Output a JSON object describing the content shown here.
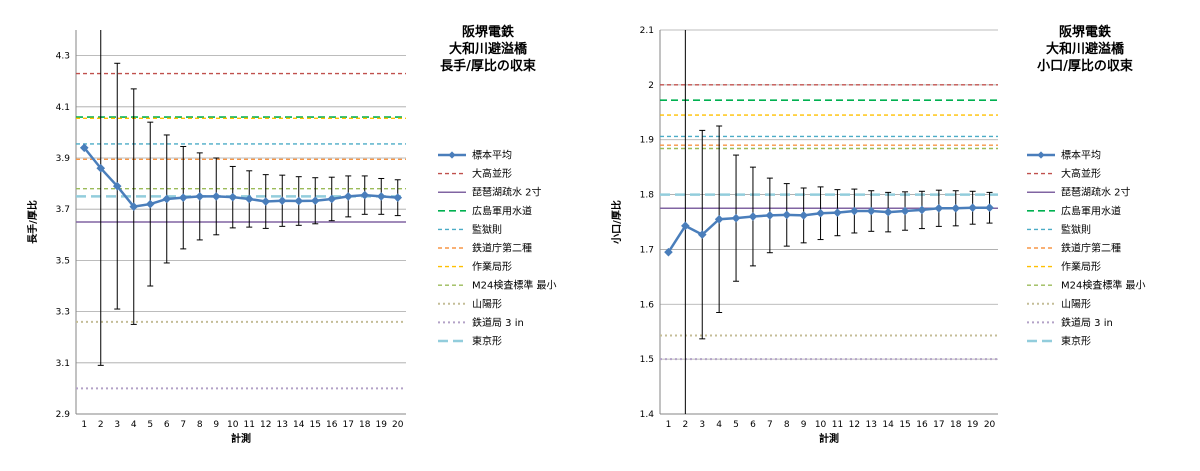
{
  "chart_data": [
    {
      "type": "line",
      "title": [
        "阪堺電鉄",
        "大和川避溢橋",
        "長手/厚比の収束"
      ],
      "xlabel": "計測",
      "ylabel": "長手/厚比",
      "ylim": [
        2.9,
        4.4
      ],
      "yticks": [
        "2.9",
        "3.1",
        "3.3",
        "3.5",
        "3.7",
        "3.9",
        "4.1",
        "4.3"
      ],
      "x": [
        1,
        2,
        3,
        4,
        5,
        6,
        7,
        8,
        9,
        10,
        11,
        12,
        13,
        14,
        15,
        16,
        17,
        18,
        19,
        20
      ],
      "grid": "horizontal",
      "legend_position": "right",
      "series": [
        {
          "name": "標本平均",
          "color": "#4a7ebb",
          "style": "line-marker",
          "values": [
            3.94,
            3.86,
            3.79,
            3.71,
            3.72,
            3.74,
            3.745,
            3.75,
            3.75,
            3.747,
            3.74,
            3.73,
            3.733,
            3.732,
            3.733,
            3.74,
            3.75,
            3.755,
            3.75,
            3.745
          ],
          "error": [
            0,
            0.77,
            0.48,
            0.46,
            0.32,
            0.25,
            0.2,
            0.17,
            0.15,
            0.12,
            0.11,
            0.105,
            0.1,
            0.095,
            0.09,
            0.085,
            0.08,
            0.075,
            0.07,
            0.07
          ]
        }
      ],
      "reference_lines": [
        {
          "name": "大高並形",
          "value": 4.23,
          "color": "#c0504d",
          "dash": "dash"
        },
        {
          "name": "琵琶湖疏水 2寸",
          "value": 3.65,
          "color": "#8064a2",
          "dash": "solid"
        },
        {
          "name": "広島軍用水道",
          "value": 4.06,
          "color": "#00b050",
          "dash": "longdash"
        },
        {
          "name": "監獄則",
          "value": 3.955,
          "color": "#4bacc6",
          "dash": "dash"
        },
        {
          "name": "鉄道庁第二種",
          "value": 3.895,
          "color": "#f79646",
          "dash": "dash"
        },
        {
          "name": "作業局形",
          "value": 4.055,
          "color": "#ffc000",
          "dash": "dash"
        },
        {
          "name": "M24検査標準 最小",
          "value": 3.78,
          "color": "#9bbb59",
          "dash": "dash"
        },
        {
          "name": "山陽形",
          "value": 3.26,
          "color": "#c4bd97",
          "dash": "dot"
        },
        {
          "name": "鉄道局 3 in",
          "value": 3.0,
          "color": "#b3a2c7",
          "dash": "dot"
        },
        {
          "name": "東京形",
          "value": 3.75,
          "color": "#92cddc",
          "dash": "thickdash"
        }
      ]
    },
    {
      "type": "line",
      "title": [
        "阪堺電鉄",
        "大和川避溢橋",
        "小口/厚比の収束"
      ],
      "xlabel": "計測",
      "ylabel": "小口/厚比",
      "ylim": [
        1.4,
        2.1
      ],
      "yticks": [
        "1.4",
        "1.5",
        "1.6",
        "1.7",
        "1.8",
        "1.9",
        "2",
        "2.1"
      ],
      "x": [
        1,
        2,
        3,
        4,
        5,
        6,
        7,
        8,
        9,
        10,
        11,
        12,
        13,
        14,
        15,
        16,
        17,
        18,
        19,
        20
      ],
      "grid": "horizontal",
      "legend_position": "right",
      "series": [
        {
          "name": "標本平均",
          "color": "#4a7ebb",
          "style": "line-marker",
          "values": [
            1.695,
            1.743,
            1.727,
            1.755,
            1.757,
            1.76,
            1.762,
            1.763,
            1.762,
            1.766,
            1.767,
            1.77,
            1.77,
            1.768,
            1.77,
            1.772,
            1.775,
            1.775,
            1.776,
            1.776
          ],
          "error": [
            0,
            0.36,
            0.19,
            0.17,
            0.115,
            0.09,
            0.068,
            0.057,
            0.05,
            0.048,
            0.042,
            0.04,
            0.037,
            0.036,
            0.035,
            0.034,
            0.033,
            0.032,
            0.03,
            0.028
          ]
        }
      ],
      "reference_lines": [
        {
          "name": "大高並形",
          "value": 2.0,
          "color": "#c0504d",
          "dash": "dash"
        },
        {
          "name": "琵琶湖疏水 2寸",
          "value": 1.775,
          "color": "#8064a2",
          "dash": "solid"
        },
        {
          "name": "広島軍用水道",
          "value": 1.972,
          "color": "#00b050",
          "dash": "longdash"
        },
        {
          "name": "監獄則",
          "value": 1.906,
          "color": "#4bacc6",
          "dash": "dash"
        },
        {
          "name": "鉄道庁第二種",
          "value": 1.89,
          "color": "#f79646",
          "dash": "dash"
        },
        {
          "name": "作業局形",
          "value": 1.945,
          "color": "#ffc000",
          "dash": "dash"
        },
        {
          "name": "M24検査標準 最小",
          "value": 1.884,
          "color": "#9bbb59",
          "dash": "dash"
        },
        {
          "name": "山陽形",
          "value": 1.543,
          "color": "#c4bd97",
          "dash": "dot"
        },
        {
          "name": "鉄道局 3 in",
          "value": 1.5,
          "color": "#b3a2c7",
          "dash": "dot"
        },
        {
          "name": "東京形",
          "value": 1.8,
          "color": "#92cddc",
          "dash": "thickdash"
        }
      ]
    }
  ]
}
